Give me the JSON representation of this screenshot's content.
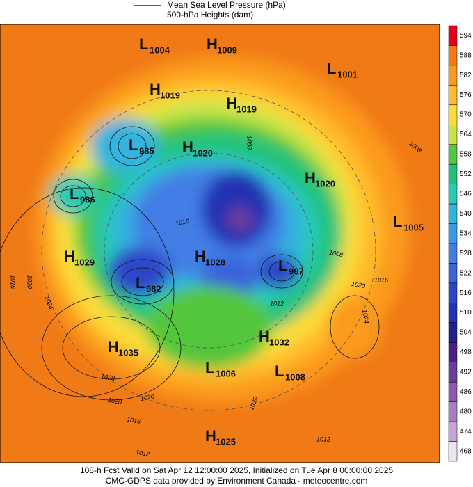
{
  "legend": {
    "line_label": "Mean Sea Level Pressure (hPa)",
    "fill_label": "500-hPa Heights (dam)"
  },
  "centers": [
    {
      "type": "L",
      "value": 1004
    },
    {
      "type": "H",
      "value": 1009
    },
    {
      "type": "L",
      "value": 1001
    },
    {
      "type": "H",
      "value": 1019
    },
    {
      "type": "H",
      "value": 1019
    },
    {
      "type": "L",
      "value": 985
    },
    {
      "type": "H",
      "value": 1020
    },
    {
      "type": "H",
      "value": 1020
    },
    {
      "type": "L",
      "value": 986
    },
    {
      "type": "L",
      "value": 1005
    },
    {
      "type": "H",
      "value": 1029
    },
    {
      "type": "H",
      "value": 1028
    },
    {
      "type": "L",
      "value": 987
    },
    {
      "type": "L",
      "value": 982
    },
    {
      "type": "H",
      "value": 1032
    },
    {
      "type": "H",
      "value": 1035
    },
    {
      "type": "L",
      "value": 1006
    },
    {
      "type": "L",
      "value": 1008
    },
    {
      "type": "H",
      "value": 1025
    }
  ],
  "contour_labels": [
    "1016",
    "1020",
    "1024",
    "1028",
    "1020",
    "1020",
    "1016",
    "1012",
    "1012",
    "1016",
    "1008",
    "1008",
    "1008",
    "1016",
    "1020",
    "1024",
    "1012",
    "1020"
  ],
  "colorbar": {
    "levels": [
      594,
      588,
      582,
      576,
      570,
      564,
      558,
      552,
      546,
      540,
      534,
      528,
      522,
      516,
      510,
      504,
      498,
      492,
      486,
      480,
      474,
      468
    ],
    "colors": [
      "#e8001a",
      "#f47a12",
      "#fb9a1e",
      "#ffbb2c",
      "#fbdc3a",
      "#c8e44a",
      "#52c63e",
      "#22c27e",
      "#27cbb4",
      "#30b4de",
      "#3a98e6",
      "#437ee4",
      "#3a62dc",
      "#2d46c8",
      "#2431b2",
      "#261f8e",
      "#4a1f88",
      "#6a3c9c",
      "#8a5cb0",
      "#a87ec2",
      "#c6a4d6",
      "#eee4f2"
    ]
  },
  "footer": {
    "line1": "108-h Fcst Valid on Sat Apr 12 12:00:00 2025, Initialized on Tue Apr  8 00:00:00 2025",
    "line2": "CMC-GDPS data provided by Environment Canada - meteocentre.com"
  }
}
